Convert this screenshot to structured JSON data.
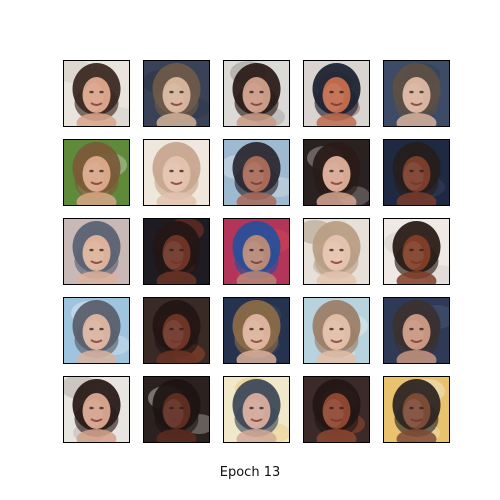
{
  "caption": "Epoch 13",
  "grid": {
    "rows": 5,
    "cols": 5,
    "tiles": [
      {
        "bg": "#e9e4de",
        "hair": "#3b2a22",
        "skin": "#d9a38a",
        "accent": "#cfc7bf"
      },
      {
        "bg": "#3a4257",
        "hair": "#6d5a4a",
        "skin": "#d5b39a",
        "accent": "#2a3145"
      },
      {
        "bg": "#dcdad6",
        "hair": "#2b1e1a",
        "skin": "#c99a84",
        "accent": "#8a8a8a"
      },
      {
        "bg": "#d9d4cf",
        "hair": "#1f2433",
        "skin": "#c06a4c",
        "accent": "#6b1f18"
      },
      {
        "bg": "#3e4b66",
        "hair": "#5d4f45",
        "skin": "#d8b49e",
        "accent": "#2f3b55"
      },
      {
        "bg": "#5e8a3a",
        "hair": "#7a5a38",
        "skin": "#d7a788",
        "accent": "#c9d8c0"
      },
      {
        "bg": "#efe6dc",
        "hair": "#c7a78f",
        "skin": "#e2c2ad",
        "accent": "#f2ebe3"
      },
      {
        "bg": "#9fbad0",
        "hair": "#2d2a33",
        "skin": "#a86a58",
        "accent": "#e1e7ea"
      },
      {
        "bg": "#2a2221",
        "hair": "#2a1b19",
        "skin": "#d7a892",
        "accent": "#b8b0ad"
      },
      {
        "bg": "#1f2a42",
        "hair": "#261d1d",
        "skin": "#7a3c2b",
        "accent": "#3d4a66"
      },
      {
        "bg": "#c9b9b6",
        "hair": "#5b6274",
        "skin": "#dcb29a",
        "accent": "#e2a4a8"
      },
      {
        "bg": "#1e1b22",
        "hair": "#231616",
        "skin": "#6d3426",
        "accent": "#9a3a26"
      },
      {
        "bg": "#b3365a",
        "hair": "#2a4f9a",
        "skin": "#b58877",
        "accent": "#d64750"
      },
      {
        "bg": "#e6e0d8",
        "hair": "#b89e85",
        "skin": "#e3c3ae",
        "accent": "#a58c75"
      },
      {
        "bg": "#efe9e5",
        "hair": "#2a1d18",
        "skin": "#7f3d27",
        "accent": "#cfc9c5"
      },
      {
        "bg": "#9ec4df",
        "hair": "#5a5f6b",
        "skin": "#d9b39f",
        "accent": "#e6eef2"
      },
      {
        "bg": "#3a2a26",
        "hair": "#221514",
        "skin": "#6c3425",
        "accent": "#cf5a2c"
      },
      {
        "bg": "#26334f",
        "hair": "#8a6a48",
        "skin": "#dcb29a",
        "accent": "#3c4a6a"
      },
      {
        "bg": "#b8d3dd",
        "hair": "#9c8068",
        "skin": "#e0bda6",
        "accent": "#e8eef0"
      },
      {
        "bg": "#2f3b56",
        "hair": "#3b3030",
        "skin": "#c89680",
        "accent": "#4a5b7a"
      },
      {
        "bg": "#e8e4e0",
        "hair": "#2a1c18",
        "skin": "#d4a18a",
        "accent": "#a9a19a"
      },
      {
        "bg": "#2b211f",
        "hair": "#1d1414",
        "skin": "#5e2c20",
        "accent": "#d7d2cf"
      },
      {
        "bg": "#f1e8c9",
        "hair": "#3e4a5a",
        "skin": "#d2a89a",
        "accent": "#e7c46a"
      },
      {
        "bg": "#3b2a27",
        "hair": "#221715",
        "skin": "#8e4630",
        "accent": "#d25a2f"
      },
      {
        "bg": "#e8c26c",
        "hair": "#2e2624",
        "skin": "#7d4a36",
        "accent": "#f2eadf"
      }
    ]
  }
}
